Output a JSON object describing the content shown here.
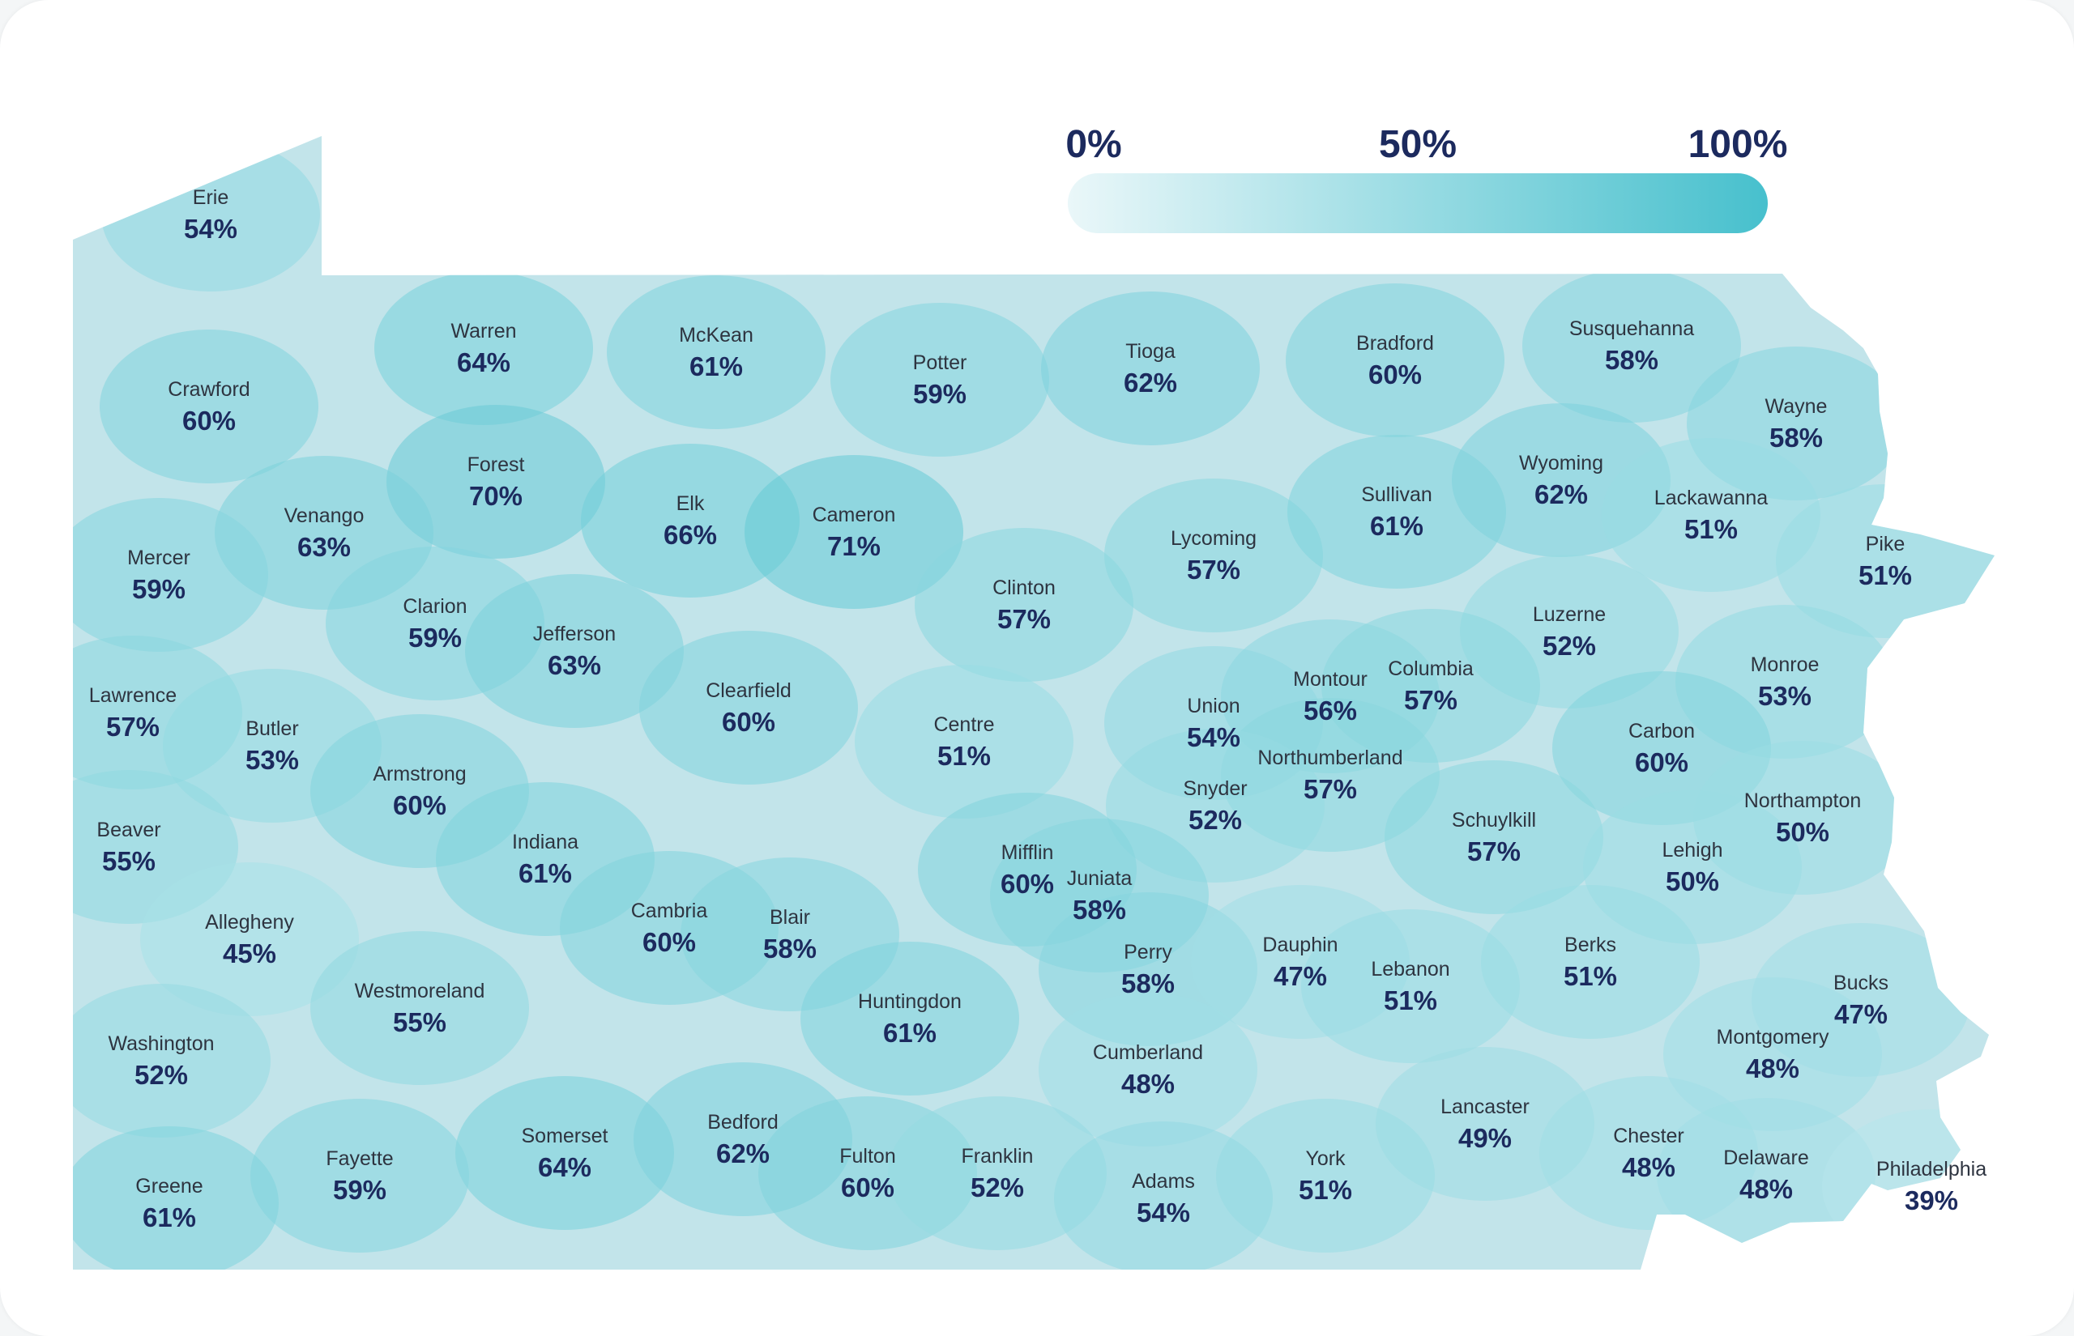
{
  "legend": {
    "min_label": "0%",
    "mid_label": "50%",
    "max_label": "100%",
    "color_low": "#eaf7f9",
    "color_high": "#47c0cd"
  },
  "colors": {
    "base_fill": "#c2e4ea",
    "border": "#d6eef2",
    "label_name": "#2e3440",
    "label_value": "#1c2a5e"
  },
  "counties": [
    {
      "name": "Erie",
      "value": "54%",
      "pct": 54
    },
    {
      "name": "Crawford",
      "value": "60%",
      "pct": 60
    },
    {
      "name": "Warren",
      "value": "64%",
      "pct": 64
    },
    {
      "name": "McKean",
      "value": "61%",
      "pct": 61
    },
    {
      "name": "Potter",
      "value": "59%",
      "pct": 59
    },
    {
      "name": "Tioga",
      "value": "62%",
      "pct": 62
    },
    {
      "name": "Bradford",
      "value": "60%",
      "pct": 60
    },
    {
      "name": "Susquehanna",
      "value": "58%",
      "pct": 58
    },
    {
      "name": "Wayne",
      "value": "58%",
      "pct": 58
    },
    {
      "name": "Forest",
      "value": "70%",
      "pct": 70
    },
    {
      "name": "Venango",
      "value": "63%",
      "pct": 63
    },
    {
      "name": "Mercer",
      "value": "59%",
      "pct": 59
    },
    {
      "name": "Elk",
      "value": "66%",
      "pct": 66
    },
    {
      "name": "Cameron",
      "value": "71%",
      "pct": 71
    },
    {
      "name": "Lycoming",
      "value": "57%",
      "pct": 57
    },
    {
      "name": "Sullivan",
      "value": "61%",
      "pct": 61
    },
    {
      "name": "Wyoming",
      "value": "62%",
      "pct": 62
    },
    {
      "name": "Lackawanna",
      "value": "51%",
      "pct": 51
    },
    {
      "name": "Pike",
      "value": "51%",
      "pct": 51
    },
    {
      "name": "Clarion",
      "value": "59%",
      "pct": 59
    },
    {
      "name": "Jefferson",
      "value": "63%",
      "pct": 63
    },
    {
      "name": "Clinton",
      "value": "57%",
      "pct": 57
    },
    {
      "name": "Luzerne",
      "value": "52%",
      "pct": 52
    },
    {
      "name": "Lawrence",
      "value": "57%",
      "pct": 57
    },
    {
      "name": "Butler",
      "value": "53%",
      "pct": 53
    },
    {
      "name": "Clearfield",
      "value": "60%",
      "pct": 60
    },
    {
      "name": "Centre",
      "value": "51%",
      "pct": 51
    },
    {
      "name": "Union",
      "value": "54%",
      "pct": 54
    },
    {
      "name": "Montour",
      "value": "56%",
      "pct": 56
    },
    {
      "name": "Columbia",
      "value": "57%",
      "pct": 57
    },
    {
      "name": "Monroe",
      "value": "53%",
      "pct": 53
    },
    {
      "name": "Carbon",
      "value": "60%",
      "pct": 60
    },
    {
      "name": "Armstrong",
      "value": "60%",
      "pct": 60
    },
    {
      "name": "Northumberland",
      "value": "57%",
      "pct": 57
    },
    {
      "name": "Snyder",
      "value": "52%",
      "pct": 52
    },
    {
      "name": "Beaver",
      "value": "55%",
      "pct": 55
    },
    {
      "name": "Indiana",
      "value": "61%",
      "pct": 61
    },
    {
      "name": "Schuylkill",
      "value": "57%",
      "pct": 57
    },
    {
      "name": "Northampton",
      "value": "50%",
      "pct": 50
    },
    {
      "name": "Lehigh",
      "value": "50%",
      "pct": 50
    },
    {
      "name": "Mifflin",
      "value": "60%",
      "pct": 60
    },
    {
      "name": "Juniata",
      "value": "58%",
      "pct": 58
    },
    {
      "name": "Allegheny",
      "value": "45%",
      "pct": 45
    },
    {
      "name": "Cambria",
      "value": "60%",
      "pct": 60
    },
    {
      "name": "Blair",
      "value": "58%",
      "pct": 58
    },
    {
      "name": "Perry",
      "value": "58%",
      "pct": 58
    },
    {
      "name": "Dauphin",
      "value": "47%",
      "pct": 47
    },
    {
      "name": "Lebanon",
      "value": "51%",
      "pct": 51
    },
    {
      "name": "Berks",
      "value": "51%",
      "pct": 51
    },
    {
      "name": "Bucks",
      "value": "47%",
      "pct": 47
    },
    {
      "name": "Westmoreland",
      "value": "55%",
      "pct": 55
    },
    {
      "name": "Huntingdon",
      "value": "61%",
      "pct": 61
    },
    {
      "name": "Montgomery",
      "value": "48%",
      "pct": 48
    },
    {
      "name": "Washington",
      "value": "52%",
      "pct": 52
    },
    {
      "name": "Cumberland",
      "value": "48%",
      "pct": 48
    },
    {
      "name": "Lancaster",
      "value": "49%",
      "pct": 49
    },
    {
      "name": "Somerset",
      "value": "64%",
      "pct": 64
    },
    {
      "name": "Bedford",
      "value": "62%",
      "pct": 62
    },
    {
      "name": "Chester",
      "value": "48%",
      "pct": 48
    },
    {
      "name": "Fayette",
      "value": "59%",
      "pct": 59
    },
    {
      "name": "Fulton",
      "value": "60%",
      "pct": 60
    },
    {
      "name": "Franklin",
      "value": "52%",
      "pct": 52
    },
    {
      "name": "York",
      "value": "51%",
      "pct": 51
    },
    {
      "name": "Delaware",
      "value": "48%",
      "pct": 48
    },
    {
      "name": "Philadelphia",
      "value": "39%",
      "pct": 39
    },
    {
      "name": "Greene",
      "value": "61%",
      "pct": 61
    },
    {
      "name": "Adams",
      "value": "54%",
      "pct": 54
    }
  ]
}
